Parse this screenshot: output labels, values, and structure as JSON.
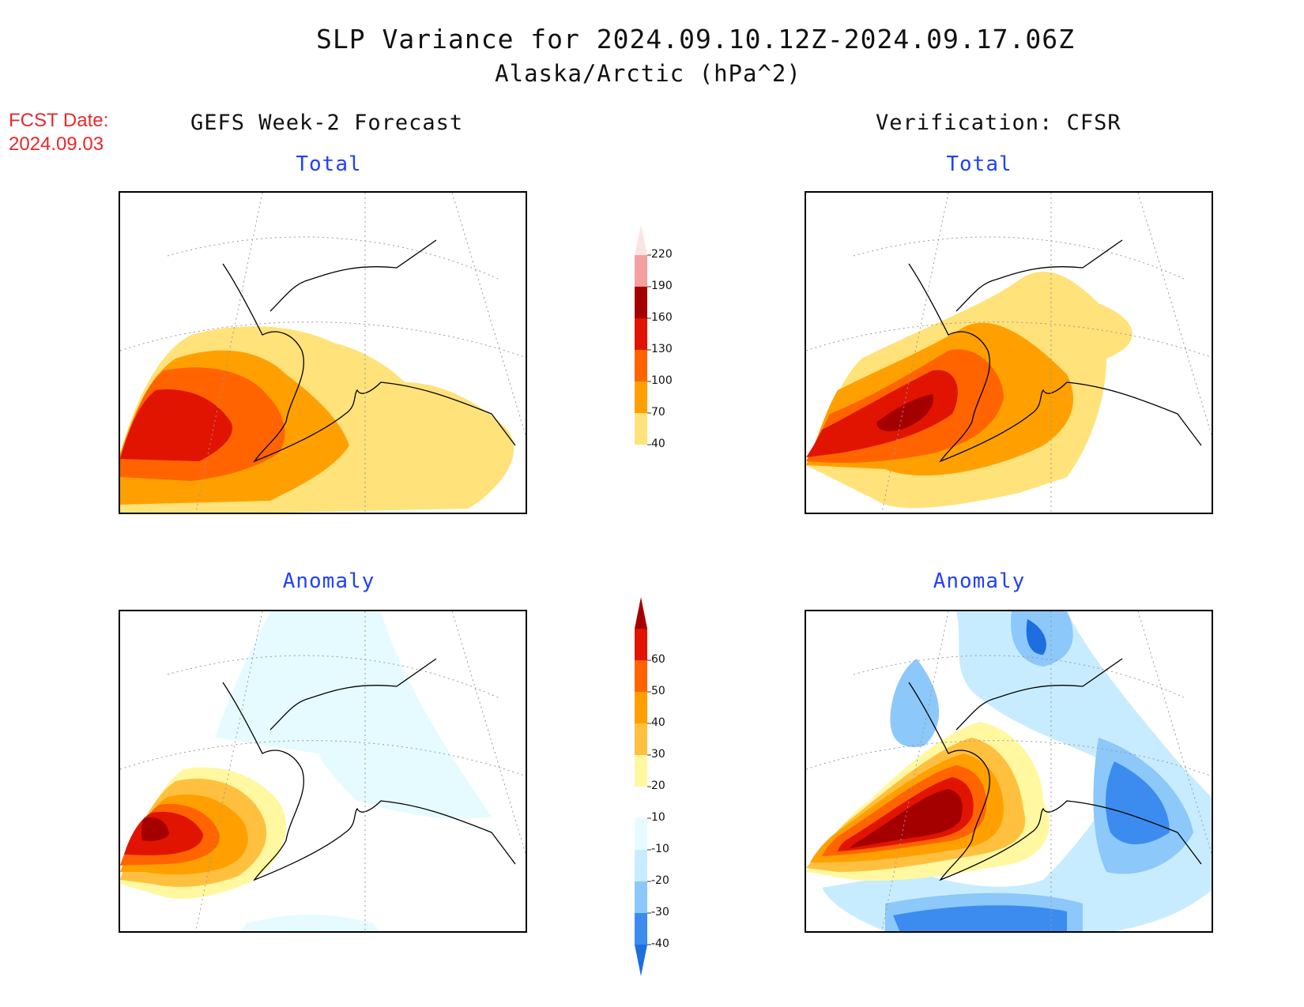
{
  "header": {
    "title": "SLP Variance for 2024.09.10.12Z-2024.09.17.06Z",
    "subtitle": "Alaska/Arctic (hPa^2)",
    "fcst_date_label": "FCST Date:",
    "fcst_date_value": "2024.09.03"
  },
  "columns": {
    "left": "GEFS Week-2 Forecast",
    "right": "Verification: CFSR"
  },
  "panels": {
    "top_left_title": "Total",
    "top_right_title": "Total",
    "bottom_left_title": "Anomaly",
    "bottom_right_title": "Anomaly"
  },
  "colorbars": {
    "total": {
      "labels": [
        "40",
        "70",
        "100",
        "130",
        "160",
        "190",
        "220"
      ],
      "colors": [
        "#ffe27a",
        "#ffa000",
        "#ff6400",
        "#e01400",
        "#a50000",
        "#f4a0a0",
        "#fbe4e4"
      ]
    },
    "anomaly": {
      "labels": [
        "-40",
        "-30",
        "-20",
        "-10",
        "10",
        "20",
        "30",
        "40",
        "50",
        "60"
      ],
      "colors": [
        "#1e6ee0",
        "#3c8cf0",
        "#8cc8fa",
        "#c8ecff",
        "#e6fbff",
        "#ffffff",
        "#fff8a0",
        "#ffc040",
        "#ffa000",
        "#ff6400",
        "#e01400",
        "#a50000"
      ]
    }
  },
  "map_colors": {
    "t40": "#ffe27a",
    "t70": "#ffa000",
    "t100": "#ff6400",
    "t130": "#e01400",
    "t160": "#a50000",
    "a_neg10": "#e6fbff",
    "a_neg20": "#c8ecff",
    "a_neg30": "#8cc8fa",
    "a_neg40": "#3c8cf0",
    "a_neg50": "#1e6ee0",
    "a10": "#fff8a0",
    "a20": "#ffc040",
    "a30": "#ffa000",
    "a40": "#ff6400",
    "a50": "#e01400",
    "a60": "#a50000"
  }
}
